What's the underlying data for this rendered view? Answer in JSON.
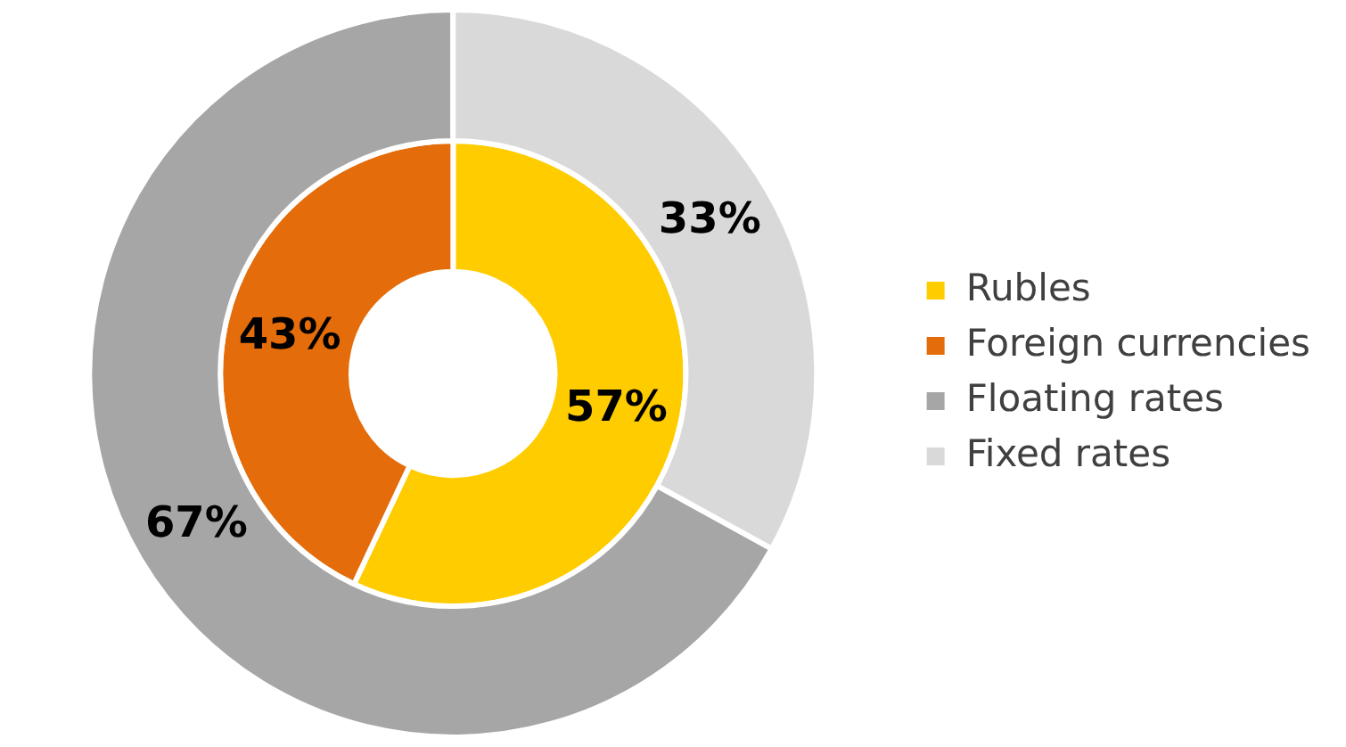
{
  "chart_data": {
    "type": "donut",
    "categories": [
      "Rubles",
      "Foreign currencies",
      "Floating rates",
      "Fixed rates"
    ],
    "colors": [
      "#ffcc00",
      "#e46c0a",
      "#a6a6a6",
      "#d9d9d9"
    ],
    "series": [
      {
        "values": [
          57,
          43,
          null,
          null
        ],
        "value_labels": [
          "57%",
          "43%",
          null,
          null
        ]
      },
      {
        "values": [
          null,
          null,
          67,
          33
        ],
        "value_labels": [
          null,
          null,
          "67%",
          "33%"
        ]
      }
    ],
    "legend": "right"
  }
}
